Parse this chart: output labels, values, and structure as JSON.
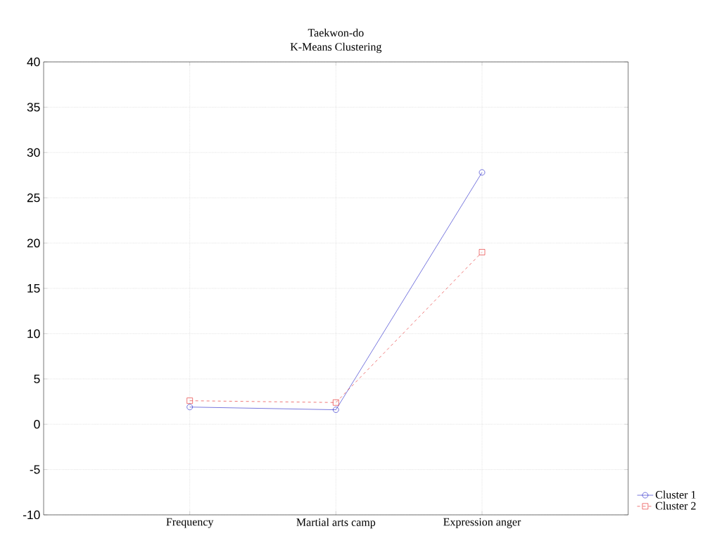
{
  "chart_data": {
    "type": "line",
    "title": "Taekwon-do",
    "subtitle": "K-Means Clustering",
    "categories": [
      "Frequency",
      "Martial arts camp",
      "Expression anger"
    ],
    "series": [
      {
        "name": "Cluster 1",
        "color": "#0000c0",
        "values": [
          1.9,
          1.6,
          27.8
        ],
        "marker": "circle",
        "line_style": "solid"
      },
      {
        "name": "Cluster 2",
        "color": "#e00000",
        "values": [
          2.6,
          2.4,
          19.0
        ],
        "marker": "square",
        "line_style": "dashed"
      }
    ],
    "ylim": [
      -10,
      40
    ],
    "yticks": [
      -10,
      -5,
      0,
      5,
      10,
      15,
      20,
      25,
      30,
      35,
      40
    ],
    "grid": true,
    "legend": "bottom right"
  }
}
